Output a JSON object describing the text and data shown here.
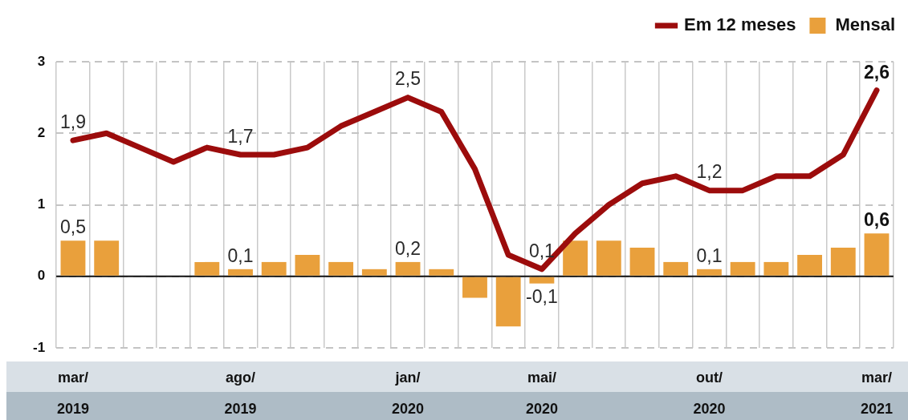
{
  "chart_data": {
    "type": "bar",
    "categories": [
      "mar/\n2019",
      null,
      null,
      null,
      null,
      "ago/\n2019",
      null,
      null,
      null,
      null,
      "jan/\n2020",
      null,
      null,
      null,
      "mai/\n2020",
      null,
      null,
      null,
      null,
      "out/\n2020",
      null,
      null,
      null,
      null,
      "mar/\n2021"
    ],
    "series": [
      {
        "name": "Em 12 meses",
        "type": "line",
        "color": "#9c0c0c",
        "values": [
          1.9,
          2.0,
          1.8,
          1.6,
          1.8,
          1.7,
          1.7,
          1.8,
          2.1,
          2.3,
          2.5,
          2.3,
          1.5,
          0.3,
          0.1,
          0.6,
          1.0,
          1.3,
          1.4,
          1.2,
          1.2,
          1.4,
          1.4,
          1.7,
          2.6
        ],
        "value_labels": [
          "1,9",
          null,
          null,
          null,
          null,
          "1,7",
          null,
          null,
          null,
          null,
          "2,5",
          null,
          null,
          null,
          "0,1",
          null,
          null,
          null,
          null,
          "1,2",
          null,
          null,
          null,
          null,
          "2,6"
        ]
      },
      {
        "name": "Mensal",
        "color": "#e9a03c",
        "values": [
          0.5,
          0.5,
          0,
          0,
          0.2,
          0.1,
          0.2,
          0.3,
          0.2,
          0.1,
          0.2,
          0.1,
          -0.3,
          -0.7,
          -0.1,
          0.5,
          0.5,
          0.4,
          0.2,
          0.1,
          0.2,
          0.2,
          0.3,
          0.4,
          0.6
        ],
        "value_labels": [
          "0,5",
          null,
          null,
          null,
          null,
          "0,1",
          null,
          null,
          null,
          null,
          "0,2",
          null,
          null,
          null,
          "-0,1",
          null,
          null,
          null,
          null,
          "0,1",
          null,
          null,
          null,
          null,
          "0,6"
        ]
      }
    ],
    "ylim": [
      -1,
      3
    ],
    "yticks": [
      -1,
      0,
      1,
      2,
      3
    ],
    "grid": true,
    "legend": "top right",
    "marker": "none",
    "line_style": "solid"
  }
}
